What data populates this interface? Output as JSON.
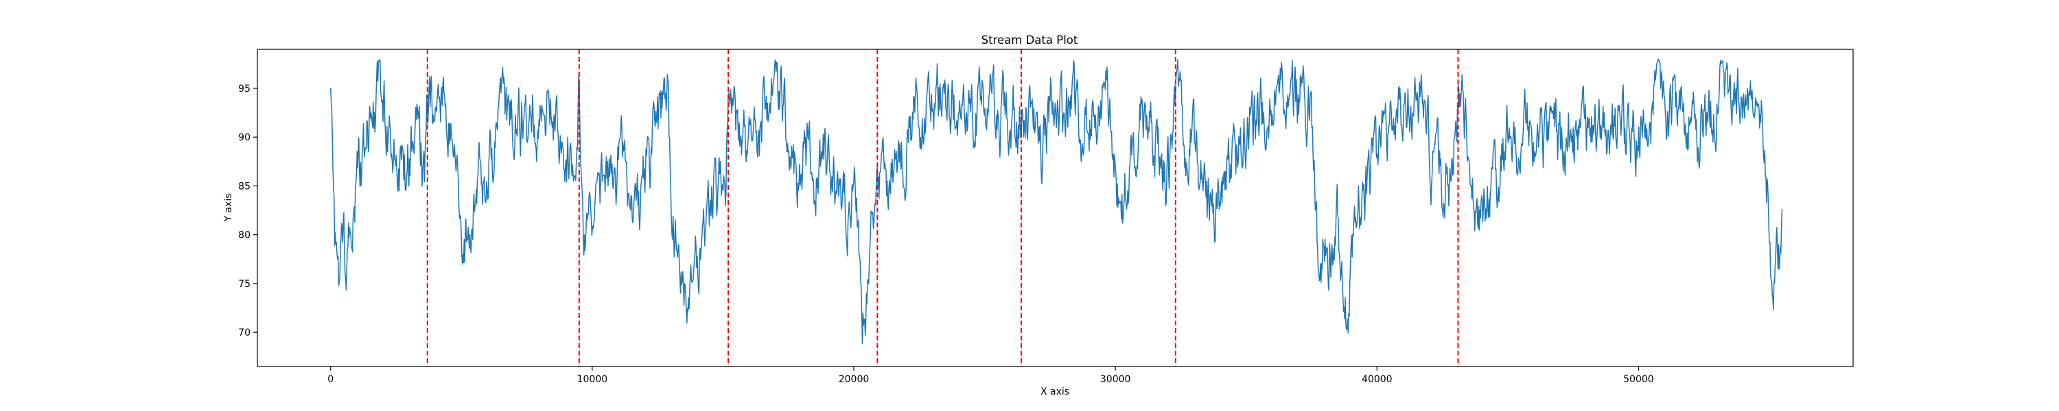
{
  "chart_data": {
    "type": "line",
    "title": "Stream Data Plot",
    "xlabel": "X axis",
    "ylabel": "Y axis",
    "xlim": [
      -2800,
      58200
    ],
    "ylim": [
      66.5,
      99
    ],
    "xticks": [
      0,
      10000,
      20000,
      30000,
      40000,
      50000
    ],
    "xtick_labels": [
      "0",
      "10000",
      "20000",
      "30000",
      "40000",
      "50000"
    ],
    "yticks": [
      70,
      75,
      80,
      85,
      90,
      95
    ],
    "ytick_labels": [
      "70",
      "75",
      "80",
      "85",
      "90",
      "95"
    ],
    "grid": false,
    "legend": "none",
    "series": [
      {
        "color": "#1f77b4",
        "x_start": 0,
        "x_end": 55500,
        "sample_points": [
          [
            0,
            95
          ],
          [
            150,
            80
          ],
          [
            300,
            72
          ],
          [
            450,
            84
          ],
          [
            600,
            74
          ],
          [
            800,
            82
          ],
          [
            1000,
            86
          ],
          [
            1300,
            88
          ],
          [
            1600,
            92
          ],
          [
            1900,
            95
          ],
          [
            2200,
            90
          ],
          [
            2500,
            88
          ],
          [
            2800,
            86
          ],
          [
            3100,
            88
          ],
          [
            3400,
            90
          ],
          [
            3600,
            86
          ],
          [
            3700,
            93
          ],
          [
            4100,
            94
          ],
          [
            4500,
            92
          ],
          [
            4800,
            90
          ],
          [
            5000,
            78
          ],
          [
            5300,
            82
          ],
          [
            5700,
            86
          ],
          [
            6100,
            88
          ],
          [
            6500,
            91
          ],
          [
            6900,
            93
          ],
          [
            7300,
            92
          ],
          [
            7700,
            91
          ],
          [
            8100,
            90
          ],
          [
            8500,
            92
          ],
          [
            8900,
            90
          ],
          [
            9200,
            87
          ],
          [
            9350,
            80
          ],
          [
            9500,
            94
          ],
          [
            9700,
            80
          ],
          [
            10100,
            82
          ],
          [
            10600,
            86
          ],
          [
            11100,
            88
          ],
          [
            11600,
            82
          ],
          [
            12100,
            86
          ],
          [
            12600,
            92
          ],
          [
            12900,
            96
          ],
          [
            13000,
            84
          ],
          [
            13300,
            78
          ],
          [
            13600,
            74
          ],
          [
            13900,
            78
          ],
          [
            14300,
            80
          ],
          [
            14700,
            84
          ],
          [
            15100,
            86
          ],
          [
            15200,
            92
          ],
          [
            15600,
            90
          ],
          [
            16000,
            88
          ],
          [
            16400,
            90
          ],
          [
            16800,
            94
          ],
          [
            17200,
            96
          ],
          [
            17500,
            90
          ],
          [
            17800,
            86
          ],
          [
            18100,
            88
          ],
          [
            18500,
            86
          ],
          [
            18900,
            88
          ],
          [
            19300,
            84
          ],
          [
            19700,
            82
          ],
          [
            20100,
            86
          ],
          [
            20300,
            70
          ],
          [
            20500,
            72
          ],
          [
            20700,
            80
          ],
          [
            20900,
            84
          ],
          [
            21300,
            86
          ],
          [
            21700,
            88
          ],
          [
            22100,
            90
          ],
          [
            22500,
            92
          ],
          [
            23000,
            94
          ],
          [
            23500,
            93
          ],
          [
            24000,
            94
          ],
          [
            24500,
            93
          ],
          [
            25000,
            94
          ],
          [
            25500,
            93
          ],
          [
            26000,
            92
          ],
          [
            26300,
            91
          ],
          [
            26400,
            94
          ],
          [
            26800,
            92
          ],
          [
            27200,
            88
          ],
          [
            27600,
            94
          ],
          [
            28000,
            92
          ],
          [
            28400,
            94
          ],
          [
            28800,
            90
          ],
          [
            29200,
            92
          ],
          [
            29700,
            94
          ],
          [
            30200,
            80
          ],
          [
            30600,
            88
          ],
          [
            31000,
            92
          ],
          [
            31400,
            90
          ],
          [
            31800,
            88
          ],
          [
            32200,
            86
          ],
          [
            32300,
            94
          ],
          [
            32700,
            90
          ],
          [
            33100,
            88
          ],
          [
            33500,
            82
          ],
          [
            33900,
            84
          ],
          [
            34300,
            86
          ],
          [
            34700,
            88
          ],
          [
            35100,
            90
          ],
          [
            35500,
            92
          ],
          [
            35900,
            94
          ],
          [
            36300,
            94
          ],
          [
            36700,
            93
          ],
          [
            37100,
            94
          ],
          [
            37500,
            92
          ],
          [
            37700,
            80
          ],
          [
            38100,
            78
          ],
          [
            38500,
            80
          ],
          [
            38900,
            72
          ],
          [
            39300,
            82
          ],
          [
            39700,
            86
          ],
          [
            40100,
            88
          ],
          [
            40500,
            90
          ],
          [
            40900,
            92
          ],
          [
            41300,
            94
          ],
          [
            41700,
            94
          ],
          [
            42100,
            88
          ],
          [
            42500,
            86
          ],
          [
            42900,
            86
          ],
          [
            43100,
            95
          ],
          [
            43400,
            92
          ],
          [
            43700,
            82
          ],
          [
            44000,
            80
          ],
          [
            44400,
            84
          ],
          [
            44800,
            88
          ],
          [
            45300,
            90
          ],
          [
            45800,
            91
          ],
          [
            46300,
            90
          ],
          [
            46800,
            89
          ],
          [
            47300,
            89
          ],
          [
            47800,
            90
          ],
          [
            48300,
            90
          ],
          [
            48800,
            90
          ],
          [
            49300,
            91
          ],
          [
            49800,
            90
          ],
          [
            50300,
            92
          ],
          [
            50800,
            94
          ],
          [
            51300,
            93
          ],
          [
            51800,
            92
          ],
          [
            52300,
            91
          ],
          [
            52800,
            93
          ],
          [
            53300,
            95
          ],
          [
            53800,
            94
          ],
          [
            54300,
            93
          ],
          [
            54700,
            92
          ],
          [
            54900,
            86
          ],
          [
            55050,
            78
          ],
          [
            55200,
            77
          ],
          [
            55350,
            78
          ],
          [
            55500,
            79
          ]
        ]
      }
    ],
    "vlines": {
      "color": "#ff0000",
      "style": "dashed",
      "x": [
        3700,
        9500,
        15200,
        20900,
        26400,
        32300,
        43100
      ]
    }
  }
}
